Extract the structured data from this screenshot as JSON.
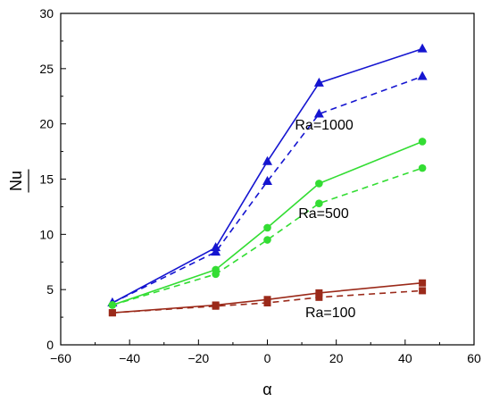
{
  "chart_data": {
    "type": "line",
    "title": "",
    "xlabel": "α",
    "ylabel": "Nu",
    "xlim": [
      -60,
      60
    ],
    "ylim": [
      0,
      30
    ],
    "xticks": [
      "−60",
      "−40",
      "−20",
      "0",
      "20",
      "40",
      "60"
    ],
    "yticks": [
      "0",
      "5",
      "10",
      "15",
      "20",
      "25",
      "30"
    ],
    "x": [
      -45,
      -15,
      0,
      15,
      45
    ],
    "grid": false,
    "legend": "none",
    "annotations": [
      {
        "text": "Ra=1000",
        "x": 8,
        "y": 19.5
      },
      {
        "text": "Ra=500",
        "x": 9,
        "y": 11.5
      },
      {
        "text": "Ra=100",
        "x": 11,
        "y": 2.5
      }
    ],
    "series": [
      {
        "group": "Ra=1000",
        "line_style": "solid",
        "marker": "triangle",
        "color": "#1515d0",
        "values": [
          3.8,
          8.8,
          16.6,
          23.7,
          26.8
        ]
      },
      {
        "group": "Ra=1000",
        "line_style": "dashed",
        "marker": "triangle",
        "color": "#1515d0",
        "values": [
          3.8,
          8.4,
          14.8,
          20.9,
          24.3
        ]
      },
      {
        "group": "Ra=500",
        "line_style": "solid",
        "marker": "circle",
        "color": "#33dd33",
        "values": [
          3.6,
          6.8,
          10.6,
          14.6,
          18.4
        ]
      },
      {
        "group": "Ra=500",
        "line_style": "dashed",
        "marker": "circle",
        "color": "#33dd33",
        "values": [
          3.6,
          6.4,
          9.5,
          12.8,
          16.0
        ]
      },
      {
        "group": "Ra=100",
        "line_style": "solid",
        "marker": "square",
        "color": "#9b2a1a",
        "values": [
          2.9,
          3.6,
          4.1,
          4.7,
          5.6
        ]
      },
      {
        "group": "Ra=100",
        "line_style": "dashed",
        "marker": "square",
        "color": "#9b2a1a",
        "values": [
          2.9,
          3.5,
          3.8,
          4.3,
          4.9
        ]
      }
    ]
  }
}
